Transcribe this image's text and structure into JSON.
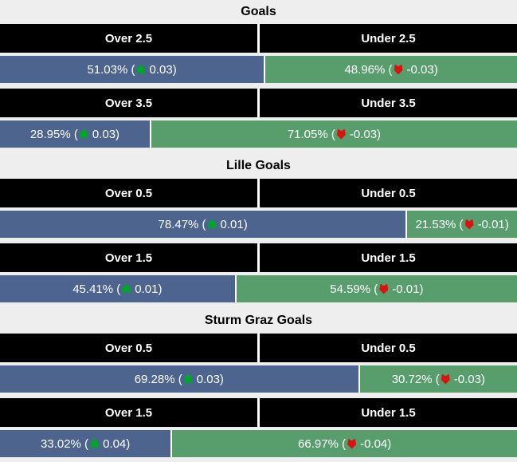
{
  "colors": {
    "page_bg": "#eeeeee",
    "header_bg": "#000000",
    "header_text": "#ffffff",
    "over_bar_blue": "#4d648f",
    "under_bar_green": "#579e6c",
    "bar_text": "#ffffff",
    "trend_up_green": "#00a32e",
    "trend_down_red": "#dd1111",
    "title_text": "#000000"
  },
  "sections": [
    {
      "title": "Goals",
      "rows": [
        {
          "over_header": "Over 2.5",
          "under_header": "Under 2.5",
          "over": {
            "width": 51.03,
            "pre": "51.03% (",
            "post": "0.03)"
          },
          "under": {
            "width": 48.96,
            "pre": "48.96% (",
            "post": "-0.03)"
          }
        },
        {
          "over_header": "Over 3.5",
          "under_header": "Under 3.5",
          "over": {
            "width": 28.95,
            "pre": "28.95% (",
            "post": "0.03)"
          },
          "under": {
            "width": 71.05,
            "pre": "71.05% (",
            "post": "-0.03)"
          }
        }
      ]
    },
    {
      "title": "Lille Goals",
      "rows": [
        {
          "over_header": "Over 0.5",
          "under_header": "Under 0.5",
          "over": {
            "width": 78.47,
            "pre": "78.47% (",
            "post": "0.01)"
          },
          "under": {
            "width": 21.53,
            "pre": "21.53% (",
            "post": "-0.01)"
          }
        },
        {
          "over_header": "Over 1.5",
          "under_header": "Under 1.5",
          "over": {
            "width": 45.41,
            "pre": "45.41% (",
            "post": "0.01)"
          },
          "under": {
            "width": 54.59,
            "pre": "54.59% (",
            "post": "-0.01)"
          }
        }
      ]
    },
    {
      "title": "Sturm Graz Goals",
      "rows": [
        {
          "over_header": "Over 0.5",
          "under_header": "Under 0.5",
          "over": {
            "width": 69.28,
            "pre": "69.28% (",
            "post": "0.03)"
          },
          "under": {
            "width": 30.72,
            "pre": "30.72% (",
            "post": "-0.03)"
          }
        },
        {
          "over_header": "Over 1.5",
          "under_header": "Under 1.5",
          "over": {
            "width": 33.02,
            "pre": "33.02% (",
            "post": "0.04)"
          },
          "under": {
            "width": 66.97,
            "pre": "66.97% (",
            "post": "-0.04)"
          }
        }
      ]
    }
  ],
  "chart_data": {
    "type": "bar",
    "subtype": "stacked-percentage-probability",
    "legend_position": "none",
    "xlim": [
      0,
      100
    ],
    "groups": [
      {
        "title": "Goals",
        "rows": [
          {
            "over_label": "Over 2.5",
            "under_label": "Under 2.5",
            "over_pct": 51.03,
            "under_pct": 48.96,
            "over_change": 0.03,
            "under_change": -0.03
          },
          {
            "over_label": "Over 3.5",
            "under_label": "Under 3.5",
            "over_pct": 28.95,
            "under_pct": 71.05,
            "over_change": 0.03,
            "under_change": -0.03
          }
        ]
      },
      {
        "title": "Lille Goals",
        "rows": [
          {
            "over_label": "Over 0.5",
            "under_label": "Under 0.5",
            "over_pct": 78.47,
            "under_pct": 21.53,
            "over_change": 0.01,
            "under_change": -0.01
          },
          {
            "over_label": "Over 1.5",
            "under_label": "Under 1.5",
            "over_pct": 45.41,
            "under_pct": 54.59,
            "over_change": 0.01,
            "under_change": -0.01
          }
        ]
      },
      {
        "title": "Sturm Graz Goals",
        "rows": [
          {
            "over_label": "Over 0.5",
            "under_label": "Under 0.5",
            "over_pct": 69.28,
            "under_pct": 30.72,
            "over_change": 0.03,
            "under_change": -0.03
          },
          {
            "over_label": "Over 1.5",
            "under_label": "Under 1.5",
            "over_pct": 33.02,
            "under_pct": 66.97,
            "over_change": 0.04,
            "under_change": -0.04
          }
        ]
      }
    ]
  }
}
